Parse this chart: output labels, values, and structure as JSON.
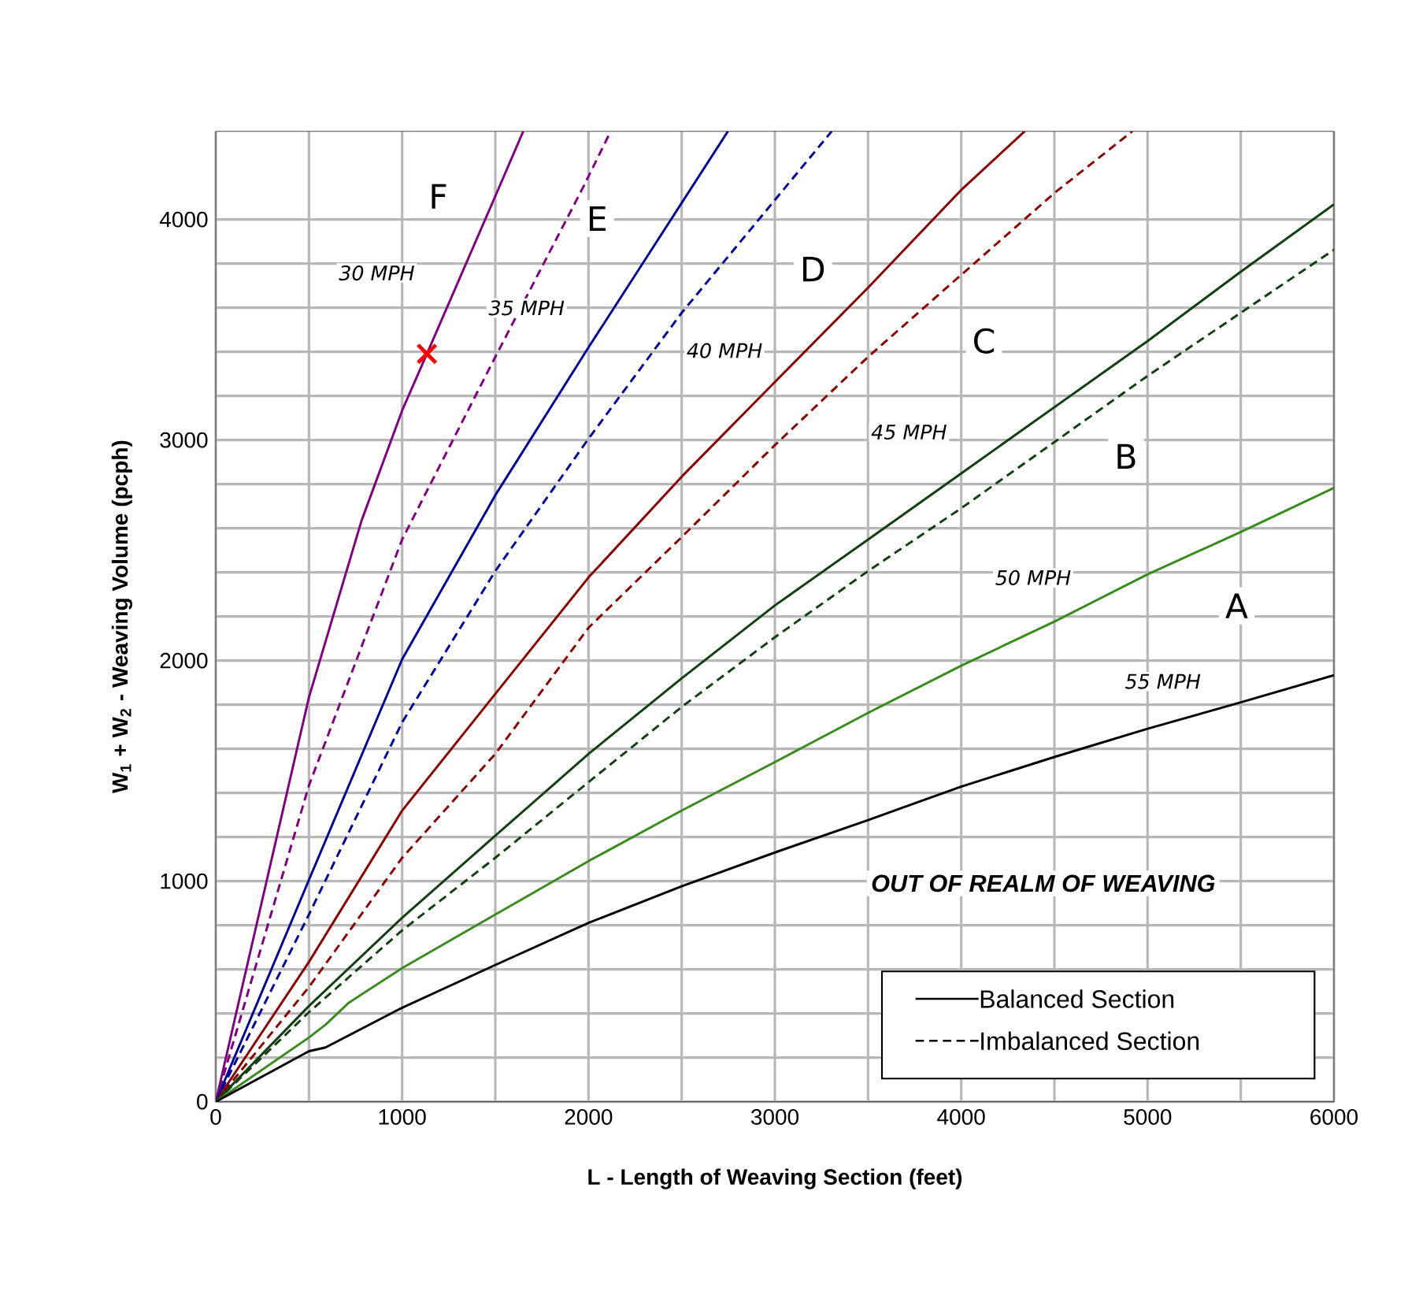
{
  "chart_data": {
    "type": "line",
    "xlabel": "L - Length of Weaving Section (feet)",
    "ylabel": "W$_{1}$ + W$_{2}$ - Weaving Volume (pcph)",
    "xlim": [
      0,
      6000
    ],
    "xticks": [
      0,
      1000,
      2000,
      3000,
      4000,
      5000,
      6000
    ],
    "ylim": [
      0,
      4400
    ],
    "yticks": [
      0,
      1000,
      2000,
      3000,
      4000
    ],
    "grid": true,
    "series": [
      {
        "color": "#800080",
        "line_style": "solid",
        "x": [
          0,
          500,
          782,
          1000,
          1133,
          1500,
          1650
        ],
        "values": [
          0,
          1834,
          2634,
          3134,
          3391,
          4106,
          4400
        ]
      },
      {
        "color": "#800080",
        "line_style": "dashed",
        "x": [
          0,
          500,
          1000,
          1500,
          1973,
          2119
        ],
        "values": [
          0,
          1434,
          2549,
          3377,
          4149,
          4400
        ]
      },
      {
        "color": "#000099",
        "line_style": "solid",
        "x": [
          0,
          500,
          1000,
          1500,
          2000,
          2748
        ],
        "values": [
          0,
          1006,
          2006,
          2750,
          3420,
          4400
        ]
      },
      {
        "color": "#000099",
        "line_style": "dashed",
        "x": [
          0,
          500,
          1000,
          1500,
          2000,
          2500,
          3305
        ],
        "values": [
          0,
          849,
          1720,
          2406,
          3006,
          3577,
          4400
        ]
      },
      {
        "color": "#8b0000",
        "line_style": "solid",
        "x": [
          0,
          500,
          1000,
          1500,
          2000,
          2500,
          3000,
          3500,
          4000,
          4341
        ],
        "values": [
          0,
          634,
          1320,
          1849,
          2377,
          2834,
          3263,
          3691,
          4134,
          4400
        ]
      },
      {
        "color": "#8b0000",
        "line_style": "dashed",
        "x": [
          0,
          500,
          1000,
          1500,
          2000,
          2500,
          3000,
          3500,
          4000,
          4500,
          4918
        ],
        "values": [
          0,
          520,
          1106,
          1577,
          2149,
          2560,
          2977,
          3377,
          3749,
          4120,
          4400
        ]
      },
      {
        "color": "#133d13",
        "line_style": "solid",
        "x": [
          0,
          500,
          1000,
          1500,
          2000,
          2500,
          3000,
          3500,
          4000,
          4500,
          5000,
          5500,
          6000
        ],
        "values": [
          0,
          434,
          834,
          1206,
          1577,
          1920,
          2250,
          2549,
          2849,
          3149,
          3449,
          3763,
          4069
        ]
      },
      {
        "color": "#133d13",
        "line_style": "dashed",
        "x": [
          0,
          500,
          1000,
          1500,
          2000,
          2500,
          3000,
          3500,
          4000,
          4500,
          5000,
          5500,
          6000
        ],
        "values": [
          0,
          406,
          777,
          1106,
          1449,
          1790,
          2106,
          2406,
          2691,
          2991,
          3291,
          3577,
          3863
        ]
      },
      {
        "color": "#3a8a1f",
        "line_style": "solid",
        "x": [
          0,
          500,
          589,
          714,
          1000,
          1500,
          2000,
          2500,
          3000,
          3500,
          4000,
          4500,
          5000,
          5500,
          6000
        ],
        "values": [
          0,
          291,
          349,
          449,
          606,
          849,
          1091,
          1320,
          1540,
          1763,
          1977,
          2177,
          2391,
          2583,
          2783
        ]
      },
      {
        "color": "#000000",
        "line_style": "solid",
        "x": [
          0,
          500,
          589,
          1000,
          1500,
          2000,
          2500,
          3000,
          3500,
          4000,
          4500,
          5000,
          5500,
          6000
        ],
        "values": [
          0,
          229,
          246,
          426,
          620,
          811,
          977,
          1130,
          1277,
          1429,
          1563,
          1691,
          1811,
          1934
        ]
      },
      {
        "type": "scatter",
        "marker": "cross",
        "color": "#ff0000",
        "x": [
          1133
        ],
        "values": [
          3391
        ]
      }
    ],
    "annotations": [
      "F",
      "E",
      "D",
      "C",
      "B",
      "A",
      "30 MPH",
      "35 MPH",
      "40 MPH",
      "45 MPH",
      "50 MPH",
      "55 MPH",
      "OUT OF REALM OF WEAVING",
      "Balanced Section",
      "Imbalanced Section"
    ]
  }
}
